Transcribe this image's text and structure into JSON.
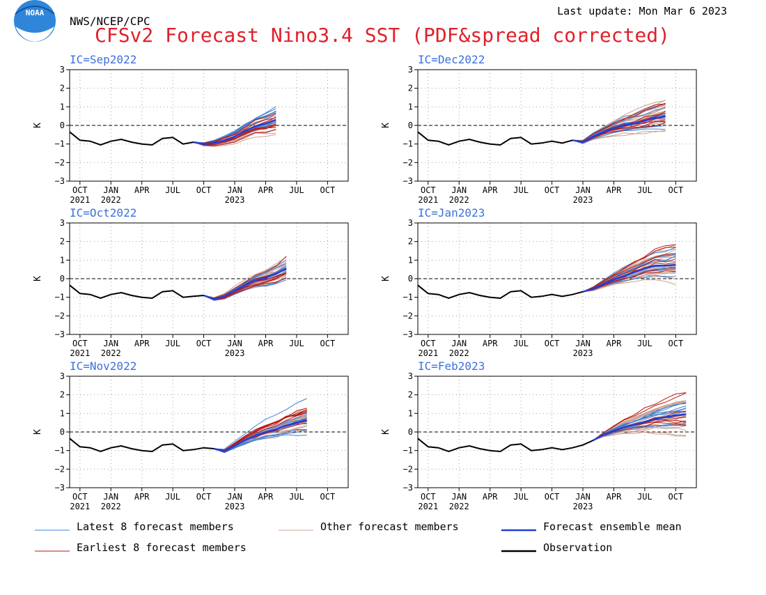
{
  "header": {
    "agency": "NWS/NCEP/CPC",
    "last_update": "Last update: Mon Mar 6 2023",
    "title": "CFSv2 Forecast Nino3.4 SST (PDF&spread corrected)",
    "logo_text": "NOAA"
  },
  "colors": {
    "title": "#e0202a",
    "ic_label": "#3a6fe0",
    "latest": "#3a7fd8",
    "other": "#c8a090",
    "mean": "#1f3fd6",
    "earliest": "#b81818",
    "observation": "#000000"
  },
  "legend": [
    {
      "key": "latest",
      "label": "Latest 8 forecast members"
    },
    {
      "key": "other",
      "label": "Other forecast members"
    },
    {
      "key": "mean",
      "label": "Forecast ensemble mean"
    },
    {
      "key": "earliest",
      "label": "Earliest 8 forecast members"
    },
    {
      "key": "observation",
      "label": "Observation"
    }
  ],
  "chart_data": {
    "type": "line",
    "ylabel": "K",
    "ylim": [
      -3,
      3
    ],
    "yticks": [
      "3",
      "2",
      "1",
      "0",
      "−1",
      "−2",
      "−3"
    ],
    "xticks": [
      {
        "m": 0,
        "label": "OCT",
        "year": "2021"
      },
      {
        "m": 3,
        "label": "JAN",
        "year": "2022"
      },
      {
        "m": 6,
        "label": "APR",
        "year": ""
      },
      {
        "m": 9,
        "label": "JUL",
        "year": ""
      },
      {
        "m": 12,
        "label": "OCT",
        "year": ""
      },
      {
        "m": 15,
        "label": "JAN",
        "year": "2023"
      },
      {
        "m": 18,
        "label": "APR",
        "year": ""
      },
      {
        "m": 21,
        "label": "JUL",
        "year": ""
      },
      {
        "m": 24,
        "label": "OCT",
        "year": ""
      }
    ],
    "xlim": [
      -1,
      26
    ],
    "observation": {
      "months": [
        -1,
        0,
        1,
        2,
        3,
        4,
        5,
        6,
        7,
        8,
        9,
        10,
        11,
        12,
        13,
        14,
        15,
        16
      ],
      "values": [
        -0.35,
        -0.8,
        -0.85,
        -1.05,
        -0.85,
        -0.75,
        -0.9,
        -1.0,
        -1.05,
        -0.7,
        -0.65,
        -1.0,
        -0.95,
        -0.85,
        -0.95,
        -0.85,
        -0.7,
        -0.45
      ]
    },
    "panels": [
      {
        "ic": "IC=Sep2022",
        "start": 11,
        "start_value": -0.9,
        "months": 9,
        "mean": [
          -0.9,
          -1.0,
          -0.95,
          -0.8,
          -0.6,
          -0.3,
          -0.05,
          0.1,
          0.3
        ],
        "spread": 0.55,
        "latest_high": 0.75
      },
      {
        "ic": "IC=Dec2022",
        "start": 14,
        "start_value": -0.8,
        "months": 10,
        "mean": [
          -0.8,
          -0.9,
          -0.6,
          -0.35,
          -0.15,
          0.0,
          0.1,
          0.25,
          0.4,
          0.5
        ],
        "spread": 0.7,
        "latest_high": 0.3
      },
      {
        "ic": "IC=Oct2022",
        "start": 12,
        "start_value": -0.9,
        "months": 9,
        "mean": [
          -0.9,
          -1.1,
          -0.95,
          -0.65,
          -0.35,
          -0.1,
          0.05,
          0.25,
          0.55
        ],
        "spread": 0.5,
        "latest_high": 0.2
      },
      {
        "ic": "IC=Jan2023",
        "start": 15,
        "start_value": -0.7,
        "months": 10,
        "mean": [
          -0.7,
          -0.55,
          -0.3,
          -0.05,
          0.15,
          0.35,
          0.55,
          0.7,
          0.7,
          0.75
        ],
        "spread": 0.7,
        "latest_high": 0.95
      },
      {
        "ic": "IC=Nov2022",
        "start": 13,
        "start_value": -0.9,
        "months": 10,
        "mean": [
          -0.9,
          -1.05,
          -0.75,
          -0.45,
          -0.2,
          0.0,
          0.15,
          0.35,
          0.5,
          0.65
        ],
        "spread": 0.6,
        "latest_high": 1.3
      },
      {
        "ic": "IC=Feb2023",
        "start": 16,
        "start_value": -0.45,
        "months": 10,
        "mean": [
          -0.45,
          -0.15,
          0.05,
          0.25,
          0.4,
          0.55,
          0.7,
          0.8,
          0.9,
          0.95
        ],
        "spread": 0.9,
        "latest_high": 0.3
      }
    ]
  }
}
